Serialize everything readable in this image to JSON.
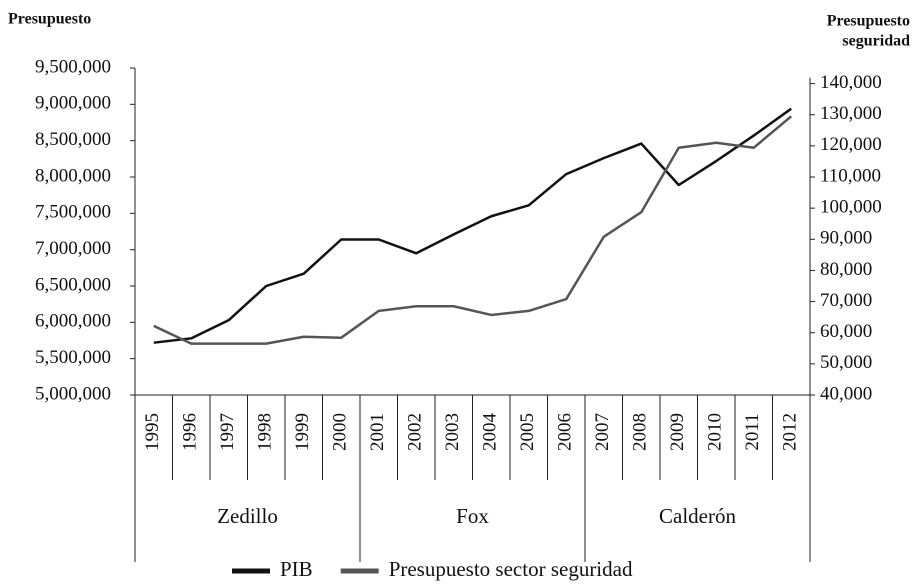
{
  "chart_data": {
    "type": "line",
    "ylabel": "Presupuesto",
    "y2label": [
      "Presupuesto",
      "seguridad"
    ],
    "categories": [
      "1995",
      "1996",
      "1997",
      "1998",
      "1999",
      "2000",
      "2001",
      "2002",
      "2003",
      "2004",
      "2005",
      "2006",
      "2007",
      "2008",
      "2009",
      "2010",
      "2011",
      "2012"
    ],
    "groups": [
      {
        "label": "Zedillo",
        "span": 6
      },
      {
        "label": "Fox",
        "span": 6
      },
      {
        "label": "Calderón",
        "span": 6
      }
    ],
    "series": [
      {
        "name": "PIB",
        "color": "#111111",
        "values": [
          5720000,
          5780000,
          6030000,
          6500000,
          6670000,
          7140000,
          7140000,
          6950000,
          7210000,
          7460000,
          7610000,
          8040000,
          8260000,
          8460000,
          7890000,
          8220000,
          8570000,
          8940000
        ]
      },
      {
        "name": "Presupuesto sector seguridad",
        "color": "#555555",
        "axis": "y2",
        "values": [
          62200,
          56500,
          56500,
          56500,
          58700,
          58400,
          67000,
          68500,
          68500,
          65700,
          67000,
          70800,
          90800,
          98700,
          119400,
          121000,
          119400,
          129500
        ]
      }
    ],
    "ylim": [
      5000000,
      9500000
    ],
    "yticks": [
      {
        "value": 5000000,
        "label": "5,000,000"
      },
      {
        "value": 5500000,
        "label": "5,500,000"
      },
      {
        "value": 6000000,
        "label": "6,000,000"
      },
      {
        "value": 6500000,
        "label": "6,500,000"
      },
      {
        "value": 7000000,
        "label": "7,000,000"
      },
      {
        "value": 7500000,
        "label": "7,500,000"
      },
      {
        "value": 8000000,
        "label": "8,000,000"
      },
      {
        "value": 8500000,
        "label": "8,500,000"
      },
      {
        "value": 9000000,
        "label": "9,000,000"
      },
      {
        "value": 9500000,
        "label": "9,500,000"
      }
    ],
    "y2lim": [
      40000,
      145000
    ],
    "y2ticks": [
      {
        "value": 40000,
        "label": "40,000"
      },
      {
        "value": 50000,
        "label": "50,000"
      },
      {
        "value": 60000,
        "label": "60,000"
      },
      {
        "value": 70000,
        "label": "70,000"
      },
      {
        "value": 80000,
        "label": "80,000"
      },
      {
        "value": 90000,
        "label": "90,000"
      },
      {
        "value": 100000,
        "label": "100,000"
      },
      {
        "value": 110000,
        "label": "110,000"
      },
      {
        "value": 120000,
        "label": "120,000"
      },
      {
        "value": 130000,
        "label": "130,000"
      },
      {
        "value": 140000,
        "label": "140,000"
      }
    ],
    "legend": "bottom"
  }
}
